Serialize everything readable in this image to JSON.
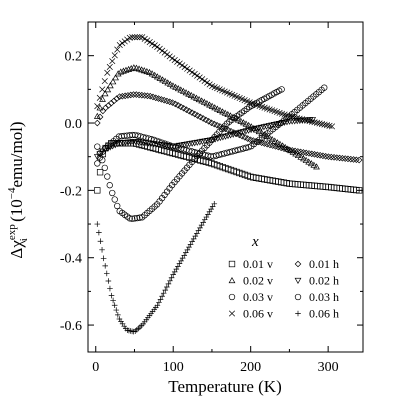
{
  "chart_data": {
    "type": "scatter",
    "xlabel": "Temperature (K)",
    "ylabel": {
      "prefix": "Δχ",
      "superscript": "exp",
      "subscript": "i",
      "unit_open": " (10",
      "unit_exp": "−4",
      "unit_rest": "emu/mol)"
    },
    "xlim": [
      -10,
      345
    ],
    "ylim": [
      -0.68,
      0.3
    ],
    "xticks": [
      0,
      100,
      200,
      300
    ],
    "xtick_labels": [
      "0",
      "100",
      "200",
      "300"
    ],
    "yticks": [
      0.2,
      0.0,
      -0.2,
      -0.4,
      -0.6
    ],
    "ytick_labels": [
      "0.2",
      "0.0",
      "-0.2",
      "-0.4",
      "-0.6"
    ],
    "legend_title": "x",
    "series": [
      {
        "name": "0.01 v",
        "marker": "square",
        "x_range": [
          2,
          340
        ],
        "n": 95,
        "curve": [
          [
            2,
            -0.2
          ],
          [
            10,
            -0.08
          ],
          [
            20,
            -0.06
          ],
          [
            50,
            -0.06
          ],
          [
            100,
            -0.09
          ],
          [
            150,
            -0.12
          ],
          [
            200,
            -0.16
          ],
          [
            250,
            -0.18
          ],
          [
            300,
            -0.19
          ],
          [
            340,
            -0.2
          ]
        ]
      },
      {
        "name": "0.02 v",
        "marker": "triangle-up",
        "x_range": [
          2,
          285
        ],
        "n": 85,
        "curve": [
          [
            2,
            0.02
          ],
          [
            10,
            0.08
          ],
          [
            30,
            0.15
          ],
          [
            50,
            0.165
          ],
          [
            70,
            0.15
          ],
          [
            100,
            0.11
          ],
          [
            150,
            0.05
          ],
          [
            200,
            -0.01
          ],
          [
            250,
            -0.08
          ],
          [
            285,
            -0.13
          ]
        ]
      },
      {
        "name": "0.03 v",
        "marker": "circle",
        "x_range": [
          2,
          295
        ],
        "n": 85,
        "curve": [
          [
            2,
            -0.12
          ],
          [
            10,
            -0.08
          ],
          [
            30,
            -0.04
          ],
          [
            50,
            -0.035
          ],
          [
            75,
            -0.05
          ],
          [
            100,
            -0.07
          ],
          [
            150,
            -0.1
          ],
          [
            200,
            -0.07
          ],
          [
            250,
            0.02
          ],
          [
            295,
            0.105
          ]
        ]
      },
      {
        "name": "0.06 v",
        "marker": "cross",
        "x_range": [
          2,
          305
        ],
        "n": 95,
        "curve": [
          [
            2,
            0.05
          ],
          [
            15,
            0.15
          ],
          [
            30,
            0.23
          ],
          [
            45,
            0.255
          ],
          [
            60,
            0.255
          ],
          [
            80,
            0.225
          ],
          [
            100,
            0.19
          ],
          [
            150,
            0.11
          ],
          [
            200,
            0.06
          ],
          [
            250,
            0.02
          ],
          [
            305,
            -0.01
          ]
        ]
      },
      {
        "name": "0.01 h",
        "marker": "diamond",
        "x_range": [
          2,
          340
        ],
        "n": 95,
        "curve": [
          [
            2,
            0.0
          ],
          [
            10,
            0.04
          ],
          [
            30,
            0.078
          ],
          [
            50,
            0.085
          ],
          [
            70,
            0.08
          ],
          [
            100,
            0.06
          ],
          [
            150,
            0.0
          ],
          [
            200,
            -0.05
          ],
          [
            250,
            -0.08
          ],
          [
            300,
            -0.1
          ],
          [
            340,
            -0.11
          ]
        ]
      },
      {
        "name": "0.02 h",
        "marker": "triangle-down",
        "x_range": [
          2,
          280
        ],
        "n": 85,
        "curve": [
          [
            2,
            -0.1
          ],
          [
            10,
            -0.08
          ],
          [
            30,
            -0.06
          ],
          [
            50,
            -0.055
          ],
          [
            70,
            -0.06
          ],
          [
            100,
            -0.07
          ],
          [
            150,
            -0.05
          ],
          [
            200,
            -0.02
          ],
          [
            250,
            0.005
          ],
          [
            280,
            0.01
          ]
        ]
      },
      {
        "name": "0.03 h",
        "marker": "circle",
        "x_range": [
          2,
          240
        ],
        "n": 75,
        "curve": [
          [
            2,
            -0.07
          ],
          [
            10,
            -0.12
          ],
          [
            20,
            -0.2
          ],
          [
            30,
            -0.26
          ],
          [
            45,
            -0.285
          ],
          [
            60,
            -0.28
          ],
          [
            80,
            -0.24
          ],
          [
            100,
            -0.18
          ],
          [
            130,
            -0.1
          ],
          [
            170,
            0.0
          ],
          [
            200,
            0.05
          ],
          [
            240,
            0.1
          ]
        ]
      },
      {
        "name": "0.06 h",
        "marker": "plus",
        "x_range": [
          2,
          153
        ],
        "n": 75,
        "curve": [
          [
            2,
            -0.3
          ],
          [
            10,
            -0.4
          ],
          [
            20,
            -0.51
          ],
          [
            30,
            -0.58
          ],
          [
            40,
            -0.615
          ],
          [
            50,
            -0.62
          ],
          [
            60,
            -0.6
          ],
          [
            80,
            -0.54
          ],
          [
            100,
            -0.45
          ],
          [
            120,
            -0.37
          ],
          [
            140,
            -0.29
          ],
          [
            153,
            -0.24
          ]
        ]
      }
    ]
  }
}
